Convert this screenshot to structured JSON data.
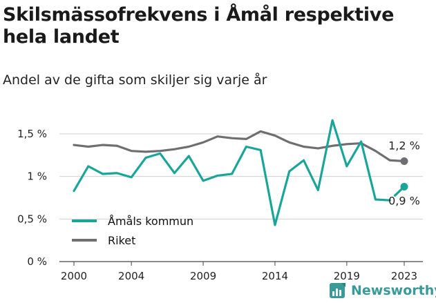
{
  "title": "Skilsmässofrekvens i Åmål respektive hela landet",
  "subtitle": "Andel av de gifta som skiljer sig varje år",
  "brand": {
    "name": "Newsworthy"
  },
  "colors": {
    "amal": "#19a59a",
    "riket": "#6f6e73",
    "grid": "#d0d0d0",
    "axis": "#444444"
  },
  "chart_data": {
    "type": "line",
    "title": "Skilsmässofrekvens i Åmål respektive hela landet",
    "subtitle": "Andel av de gifta som skiljer sig varje år",
    "xlabel": "",
    "ylabel": "",
    "x": [
      2000,
      2001,
      2002,
      2003,
      2004,
      2005,
      2006,
      2007,
      2008,
      2009,
      2010,
      2011,
      2012,
      2013,
      2014,
      2015,
      2016,
      2017,
      2018,
      2019,
      2020,
      2021,
      2022,
      2023
    ],
    "xticks": [
      2000,
      2004,
      2009,
      2014,
      2019,
      2023
    ],
    "xtick_labels": [
      "2000",
      "2004",
      "2009",
      "2014",
      "2019",
      "2023"
    ],
    "ylim": [
      0,
      1.5
    ],
    "yticks": [
      0,
      0.5,
      1,
      1.5
    ],
    "ytick_labels": [
      "0 %",
      "0,5 %",
      "1 %",
      "1,5 %"
    ],
    "grid": "horizontal",
    "legend": "bottom-left",
    "series": [
      {
        "name": "Åmåls kommun",
        "color": "#19a59a",
        "values": [
          0.83,
          1.12,
          1.03,
          1.04,
          0.99,
          1.22,
          1.27,
          1.04,
          1.24,
          0.95,
          1.01,
          1.03,
          1.35,
          1.31,
          0.43,
          1.06,
          1.19,
          0.84,
          1.66,
          1.12,
          1.41,
          0.73,
          0.72,
          0.88
        ],
        "gap_before_last": true,
        "end_label": "0,9 %"
      },
      {
        "name": "Riket",
        "color": "#6f6e73",
        "values": [
          1.37,
          1.35,
          1.37,
          1.36,
          1.3,
          1.29,
          1.3,
          1.32,
          1.35,
          1.4,
          1.47,
          1.45,
          1.44,
          1.53,
          1.48,
          1.4,
          1.35,
          1.33,
          1.36,
          1.38,
          1.39,
          1.3,
          1.19,
          1.18
        ],
        "end_label": "1,2 %"
      }
    ]
  }
}
